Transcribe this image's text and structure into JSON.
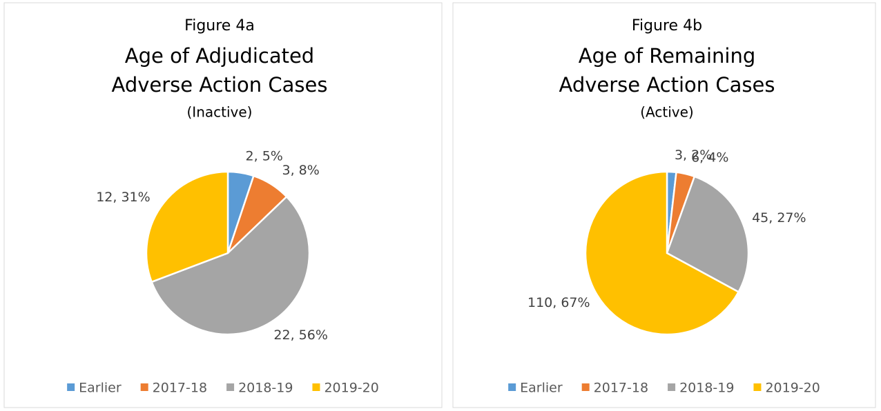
{
  "chart_data": [
    {
      "type": "pie",
      "figure": "Figure 4a",
      "title": [
        "Age of Adjudicated",
        "Adverse Action Cases"
      ],
      "subtitle": "(Inactive)",
      "categories": [
        "Earlier",
        "2017-18",
        "2018-19",
        "2019-20"
      ],
      "colors": [
        "#5b9bd5",
        "#ed7d31",
        "#a5a5a5",
        "#ffc000"
      ],
      "values": [
        2,
        3,
        22,
        12
      ],
      "value_labels": [
        "2, 5%",
        "3, 8%",
        "22, 56%",
        "12, 31%"
      ],
      "legend": "bottom"
    },
    {
      "type": "pie",
      "figure": "Figure 4b",
      "title": [
        "Age of Remaining",
        "Adverse Action Cases"
      ],
      "subtitle": "(Active)",
      "categories": [
        "Earlier",
        "2017-18",
        "2018-19",
        "2019-20"
      ],
      "colors": [
        "#5b9bd5",
        "#ed7d31",
        "#a5a5a5",
        "#ffc000"
      ],
      "values": [
        3,
        6,
        45,
        110
      ],
      "value_labels": [
        "3, 2%",
        "6, 4%",
        "45, 27%",
        "110, 67%"
      ],
      "legend": "bottom"
    }
  ]
}
